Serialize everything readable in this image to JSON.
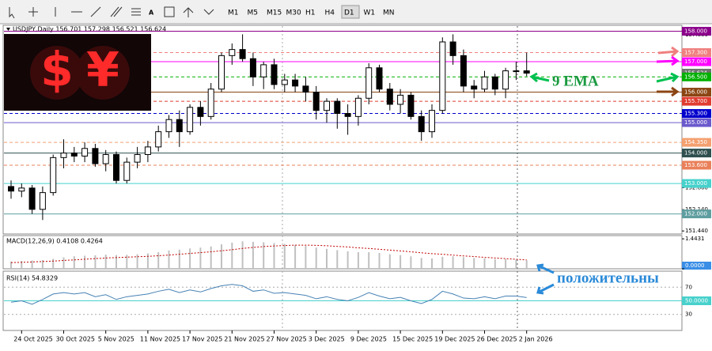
{
  "toolbar": {
    "timeframes": [
      "M1",
      "M5",
      "M15",
      "M30",
      "H1",
      "H4",
      "D1",
      "W1",
      "MN"
    ],
    "active_index": 6
  },
  "logo": {
    "symbols": [
      "$",
      "¥"
    ]
  },
  "annotations": [
    "9 EMA",
    "положительны"
  ],
  "chart_data": [
    {
      "type": "candlestick",
      "title": "USDJPY,Daily  156.701 157.298 156.521 156.624",
      "categories": [
        null,
        "24 Oct 2025",
        null,
        null,
        null,
        "30 Oct 2025",
        null,
        null,
        null,
        "5 Nov 2025",
        null,
        null,
        null,
        "11 Nov 2025",
        null,
        null,
        null,
        "17 Nov 2025",
        null,
        null,
        null,
        "21 Nov 2025",
        null,
        null,
        null,
        "27 Nov 2025",
        null,
        null,
        null,
        "3 Dec 2025",
        null,
        null,
        null,
        "9 Dec 2025",
        null,
        null,
        null,
        "15 Dec 2025",
        null,
        null,
        null,
        "19 Dec 2025",
        null,
        null,
        null,
        "26 Dec 2025",
        null,
        null,
        null,
        "2 Jan 2026"
      ],
      "open": [
        152.9,
        152.75,
        152.85,
        152.15,
        152.7,
        153.85,
        154.0,
        153.9,
        154.15,
        153.65,
        153.95,
        153.1,
        153.7,
        153.95,
        154.2,
        154.7,
        155.1,
        154.7,
        155.5,
        155.2,
        156.1,
        157.2,
        157.4,
        157.1,
        156.5,
        156.9,
        156.25,
        156.4,
        156.2,
        156.0,
        155.4,
        155.7,
        155.3,
        155.2,
        155.8,
        156.8,
        156.1,
        155.6,
        155.9,
        155.2,
        154.7,
        155.4,
        157.65,
        157.2,
        156.2,
        156.1,
        156.5,
        156.1,
        156.7,
        156.701
      ],
      "high": [
        153.1,
        153.0,
        152.95,
        152.9,
        153.95,
        154.45,
        154.2,
        154.35,
        154.3,
        154.1,
        154.05,
        153.85,
        154.2,
        154.4,
        154.9,
        155.25,
        155.4,
        155.6,
        155.7,
        156.3,
        157.3,
        157.6,
        157.9,
        157.3,
        157.0,
        157.1,
        156.6,
        156.6,
        156.5,
        156.2,
        155.8,
        155.8,
        155.6,
        155.9,
        156.95,
        156.9,
        156.3,
        156.1,
        156.0,
        155.4,
        155.6,
        157.8,
        157.9,
        157.4,
        156.4,
        156.7,
        156.6,
        156.8,
        157.0,
        157.298
      ],
      "low": [
        152.5,
        152.55,
        152.0,
        151.8,
        152.6,
        153.5,
        153.7,
        153.7,
        153.55,
        153.4,
        153.0,
        153.0,
        153.5,
        153.7,
        154.05,
        154.5,
        154.2,
        154.6,
        154.9,
        155.1,
        156.0,
        156.9,
        157.0,
        156.2,
        156.1,
        156.1,
        156.0,
        156.0,
        155.7,
        155.1,
        155.0,
        154.8,
        154.6,
        154.9,
        155.6,
        156.0,
        155.4,
        155.3,
        155.1,
        154.4,
        154.5,
        155.3,
        156.9,
        156.0,
        155.8,
        156.0,
        155.9,
        155.8,
        156.4,
        156.521
      ],
      "close": [
        152.75,
        152.85,
        152.15,
        152.7,
        153.85,
        154.0,
        153.9,
        154.15,
        153.65,
        153.95,
        153.1,
        153.7,
        153.95,
        154.2,
        154.7,
        155.1,
        154.7,
        155.5,
        155.2,
        156.1,
        157.2,
        157.4,
        157.1,
        156.5,
        156.9,
        156.25,
        156.4,
        156.2,
        156.0,
        155.4,
        155.7,
        155.3,
        155.2,
        155.8,
        156.8,
        156.1,
        155.6,
        155.9,
        155.2,
        154.7,
        155.4,
        157.65,
        157.2,
        156.2,
        156.1,
        156.5,
        156.1,
        156.7,
        156.7,
        156.624
      ],
      "up_color": "#ffffff",
      "down_color": "#000000",
      "ylim": [
        151.34,
        158.17
      ],
      "yticks": [
        {
          "value": 157.88,
          "label": "157.880"
        },
        {
          "value": 152.86,
          "label": "152.860"
        },
        {
          "value": 152.14,
          "label": "152.140"
        },
        {
          "value": 151.44,
          "label": "151.440"
        }
      ],
      "levels": [
        {
          "value": 158,
          "label": "158.000",
          "color": "#8b008b",
          "dash": false
        },
        {
          "value": 157.3,
          "label": "157.300",
          "color": "#f08080",
          "dash": true
        },
        {
          "value": 157,
          "label": "157.000",
          "color": "#ff00ff",
          "dash": false
        },
        {
          "value": 156.624,
          "label": "156.624",
          "color": "#707070",
          "dash": null
        },
        {
          "value": 156.5,
          "label": "156.500",
          "color": "#00b000",
          "dash": true
        },
        {
          "value": 156,
          "label": "156.000",
          "color": "#8b4513",
          "dash": false
        },
        {
          "value": 155.7,
          "label": "155.700",
          "color": "#e03c31",
          "dash": true
        },
        {
          "value": 155.3,
          "label": "155.300",
          "color": "#0000cd",
          "dash": true
        },
        {
          "value": 155,
          "label": "155.000",
          "color": "#6a5acd",
          "dash": false
        },
        {
          "value": 154.35,
          "label": "154.350",
          "color": "#f4a070",
          "dash": true
        },
        {
          "value": 154,
          "label": "154.000",
          "color": "#2f4f4f",
          "dash": false
        },
        {
          "value": 153.6,
          "label": "153.600",
          "color": "#e9805a",
          "dash": true
        },
        {
          "value": 153,
          "label": "153.000",
          "color": "#48d1cc",
          "dash": false
        },
        {
          "value": 152,
          "label": "152.000",
          "color": "#5f9ea0",
          "dash": false
        }
      ]
    },
    {
      "type": "bar",
      "title": "MACD(12,26,9) 0.4108 0.4264",
      "values": [
        0.35,
        0.38,
        0.4,
        0.42,
        0.48,
        0.55,
        0.6,
        0.63,
        0.65,
        0.68,
        0.66,
        0.67,
        0.7,
        0.74,
        0.8,
        0.88,
        0.92,
        0.98,
        1.02,
        1.08,
        1.18,
        1.26,
        1.32,
        1.3,
        1.28,
        1.24,
        1.2,
        1.15,
        1.1,
        1.02,
        0.96,
        0.9,
        0.84,
        0.8,
        0.8,
        0.76,
        0.7,
        0.66,
        0.6,
        0.52,
        0.5,
        0.58,
        0.6,
        0.56,
        0.52,
        0.5,
        0.46,
        0.46,
        0.44,
        0.4108
      ],
      "signal": [
        0.3,
        0.31,
        0.33,
        0.35,
        0.37,
        0.4,
        0.43,
        0.46,
        0.49,
        0.52,
        0.54,
        0.56,
        0.58,
        0.6,
        0.63,
        0.66,
        0.7,
        0.74,
        0.78,
        0.82,
        0.87,
        0.92,
        0.98,
        1.03,
        1.07,
        1.1,
        1.12,
        1.14,
        1.14,
        1.13,
        1.11,
        1.08,
        1.05,
        1.01,
        0.98,
        0.94,
        0.9,
        0.86,
        0.82,
        0.77,
        0.73,
        0.7,
        0.66,
        0.62,
        0.59,
        0.55,
        0.52,
        0.49,
        0.46,
        0.4264
      ],
      "color": "#c0c0c0",
      "signal_color": "#c00000",
      "ylim": [
        0,
        1.6
      ],
      "yticks": [
        1.4431,
        {
          "value": 0,
          "label": "0.0000"
        }
      ]
    },
    {
      "type": "line",
      "title": "RSI(14) 54.8329",
      "values": [
        48,
        50,
        45,
        52,
        60,
        62,
        60,
        62,
        56,
        59,
        52,
        56,
        58,
        60,
        64,
        67,
        62,
        66,
        63,
        68,
        72,
        74,
        72,
        64,
        66,
        61,
        62,
        60,
        58,
        53,
        56,
        52,
        50,
        55,
        62,
        57,
        53,
        55,
        50,
        46,
        52,
        64,
        60,
        54,
        53,
        56,
        53,
        57,
        57,
        54.8329
      ],
      "color": "#4682b4",
      "ylim": [
        6.5,
        93.5
      ],
      "yticks": [
        70,
        {
          "value": 50,
          "label": "50.0000"
        },
        30
      ]
    }
  ]
}
